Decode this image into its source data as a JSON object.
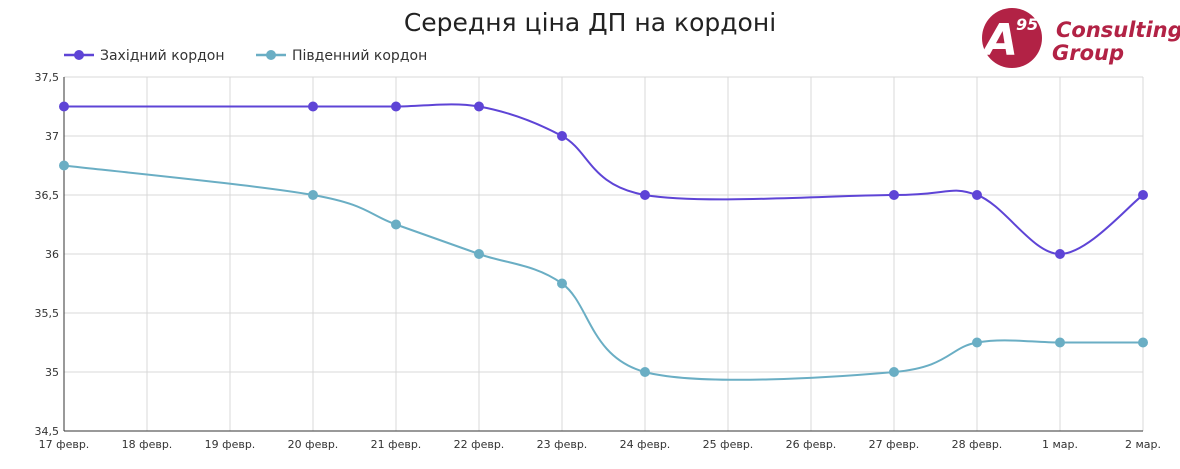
{
  "colors": {
    "series_west": "#5e44d6",
    "series_south": "#6aaec4",
    "grid": "#d9d9d9",
    "axis": "#333333",
    "logo": "#b22245"
  },
  "logo": {
    "letter": "A",
    "number": "95",
    "line1": "Consulting",
    "line2": "Group"
  },
  "chart_data": {
    "type": "line",
    "title": "Середня ціна ДП на кордоні",
    "xlabel": "",
    "ylabel": "",
    "categories": [
      "17 февр.",
      "18 февр.",
      "19 февр.",
      "20 февр.",
      "21 февр.",
      "22 февр.",
      "23 февр.",
      "24 февр.",
      "25 февр.",
      "26 февр.",
      "27 февр.",
      "28 февр.",
      "1 мар.",
      "2 мар."
    ],
    "ylim": [
      34.5,
      37.5
    ],
    "yticks": [
      34.5,
      35,
      35.5,
      36,
      36.5,
      37,
      37.5
    ],
    "ytick_labels": [
      "34,5",
      "35",
      "35,5",
      "36",
      "36,5",
      "37",
      "37,5"
    ],
    "grid": true,
    "legend_position": "top-left",
    "smooth": true,
    "series": [
      {
        "name": "Західний кордон",
        "color": "#5e44d6",
        "values": [
          37.25,
          null,
          null,
          37.25,
          37.25,
          37.25,
          37.0,
          36.5,
          null,
          null,
          36.5,
          36.5,
          36.0,
          36.5
        ]
      },
      {
        "name": "Південний кордон",
        "color": "#6aaec4",
        "values": [
          36.75,
          null,
          null,
          36.5,
          36.25,
          36.0,
          35.75,
          35.0,
          null,
          null,
          35.0,
          35.25,
          35.25,
          35.25
        ]
      }
    ]
  }
}
